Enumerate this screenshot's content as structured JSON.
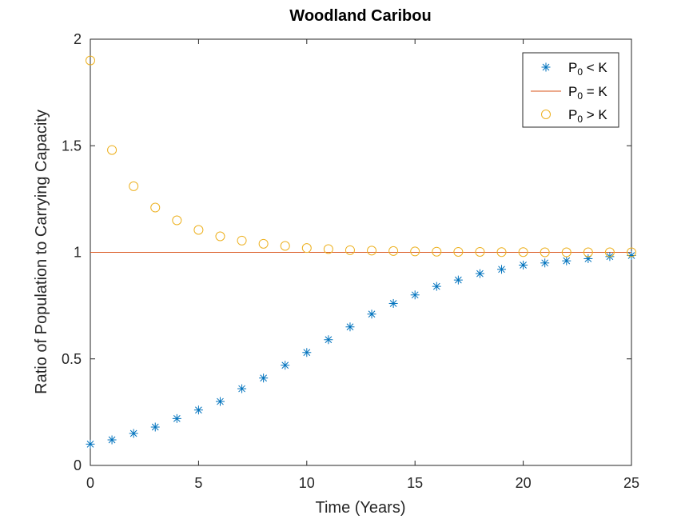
{
  "chart_data": {
    "type": "scatter",
    "title": "Woodland Caribou",
    "xlabel": "Time (Years)",
    "ylabel": "Ratio of Population to Carrying Capacity",
    "xlim": [
      0,
      25
    ],
    "ylim": [
      0,
      2
    ],
    "xticks": [
      "0",
      "5",
      "10",
      "15",
      "20",
      "25"
    ],
    "yticks": [
      "0",
      "0.5",
      "1",
      "1.5",
      "2"
    ],
    "grid": false,
    "legend_position": "top-right",
    "series": [
      {
        "name": "P0 < K",
        "legend_main": "P",
        "legend_sub": "0",
        "legend_rest": " < K",
        "marker": "asterisk",
        "color": "#0072BD",
        "x": [
          0,
          1,
          2,
          3,
          4,
          5,
          6,
          7,
          8,
          9,
          10,
          11,
          12,
          13,
          14,
          15,
          16,
          17,
          18,
          19,
          20,
          21,
          22,
          23,
          24,
          25
        ],
        "y": [
          0.1,
          0.12,
          0.15,
          0.18,
          0.22,
          0.26,
          0.3,
          0.36,
          0.41,
          0.47,
          0.53,
          0.59,
          0.65,
          0.71,
          0.76,
          0.8,
          0.84,
          0.87,
          0.9,
          0.92,
          0.94,
          0.95,
          0.96,
          0.97,
          0.98,
          0.985
        ]
      },
      {
        "name": "P0 = K",
        "legend_main": "P",
        "legend_sub": "0",
        "legend_rest": " = K",
        "marker": "line",
        "color": "#D95319",
        "x": [
          0,
          25
        ],
        "y": [
          1,
          1
        ]
      },
      {
        "name": "P0 > K",
        "legend_main": "P",
        "legend_sub": "0",
        "legend_rest": " > K",
        "marker": "circle",
        "color": "#EDB120",
        "x": [
          0,
          1,
          2,
          3,
          4,
          5,
          6,
          7,
          8,
          9,
          10,
          11,
          12,
          13,
          14,
          15,
          16,
          17,
          18,
          19,
          20,
          21,
          22,
          23,
          24,
          25
        ],
        "y": [
          1.9,
          1.48,
          1.31,
          1.21,
          1.15,
          1.105,
          1.075,
          1.055,
          1.04,
          1.03,
          1.02,
          1.015,
          1.01,
          1.008,
          1.006,
          1.004,
          1.003,
          1.002,
          1.002,
          1.001,
          1.001,
          1.0,
          1.0,
          1.0,
          1.0,
          1.0
        ]
      }
    ]
  }
}
